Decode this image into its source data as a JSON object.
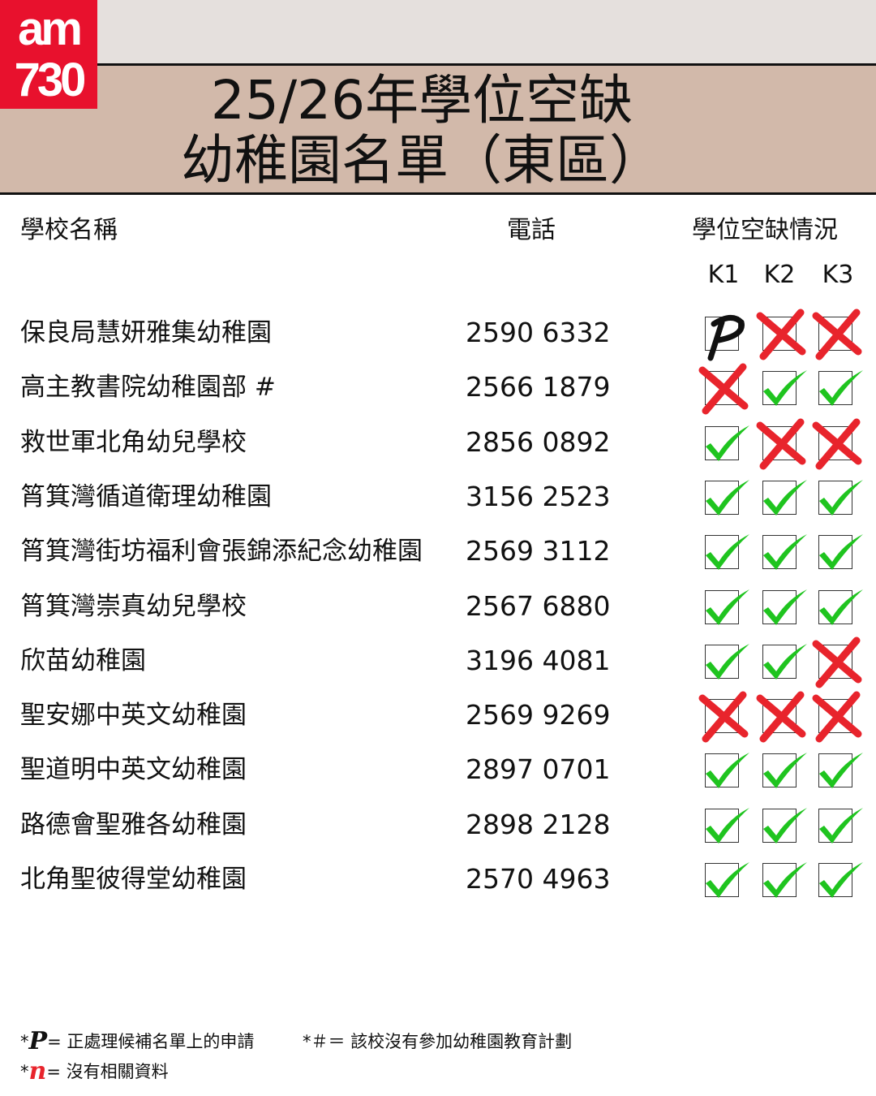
{
  "brand": {
    "logo_text_top": "am",
    "logo_text_bottom": "730",
    "logo_color": "#e8112d"
  },
  "title": {
    "line1": "25/26年學位空缺",
    "line2": "幼稚園名單（東區）"
  },
  "columns": {
    "name": "學校名稱",
    "phone": "電話",
    "vacancy": "學位空缺情況",
    "grades": [
      "K1",
      "K2",
      "K3"
    ]
  },
  "status_legend": {
    "Y": "check-icon",
    "X": "cross-icon",
    "P": "pending-icon"
  },
  "colors": {
    "check": "#1fc41f",
    "cross": "#e8242c",
    "pending": "#111111",
    "header_band": "#d2b9aa",
    "top_band": "#e5e0dd"
  },
  "schools": [
    {
      "name": "保良局慧妍雅集幼稚園",
      "phone": "2590 6332",
      "status": [
        "P",
        "X",
        "X"
      ]
    },
    {
      "name": "高主教書院幼稚園部 #",
      "phone": "2566 1879",
      "status": [
        "X",
        "Y",
        "Y"
      ]
    },
    {
      "name": "救世軍北角幼兒學校",
      "phone": "2856 0892",
      "status": [
        "Y",
        "X",
        "X"
      ]
    },
    {
      "name": "筲箕灣循道衛理幼稚園",
      "phone": "3156 2523",
      "status": [
        "Y",
        "Y",
        "Y"
      ]
    },
    {
      "name": "筲箕灣街坊福利會張錦添紀念幼稚園",
      "phone": "2569 3112",
      "status": [
        "Y",
        "Y",
        "Y"
      ]
    },
    {
      "name": "筲箕灣崇真幼兒學校",
      "phone": "2567 6880",
      "status": [
        "Y",
        "Y",
        "Y"
      ]
    },
    {
      "name": "欣苗幼稚園",
      "phone": "3196 4081",
      "status": [
        "Y",
        "Y",
        "X"
      ]
    },
    {
      "name": "聖安娜中英文幼稚園",
      "phone": "2569 9269",
      "status": [
        "X",
        "X",
        "X"
      ]
    },
    {
      "name": "聖道明中英文幼稚園",
      "phone": "2897 0701",
      "status": [
        "Y",
        "Y",
        "Y"
      ]
    },
    {
      "name": "路德會聖雅各幼稚園",
      "phone": "2898 2128",
      "status": [
        "Y",
        "Y",
        "Y"
      ]
    },
    {
      "name": "北角聖彼得堂幼稚園",
      "phone": "2570 4963",
      "status": [
        "Y",
        "Y",
        "Y"
      ]
    }
  ],
  "legend": {
    "p_symbol": "P",
    "p_text": "= 正處理候補名單上的申請",
    "hash_text": "*＃＝ 該校沒有參加幼稚園教育計劃",
    "n_symbol": "n",
    "n_text": "= 沒有相關資料",
    "star": "*"
  }
}
